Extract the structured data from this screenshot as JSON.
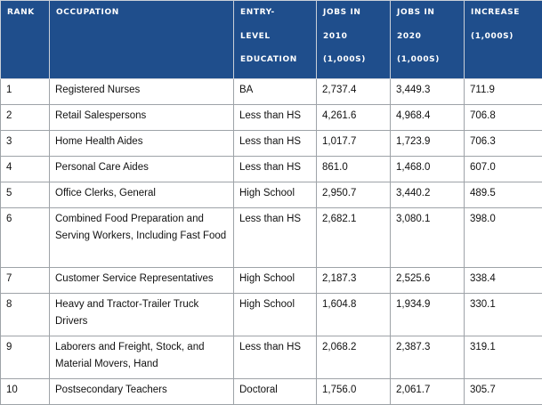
{
  "table": {
    "headers": {
      "rank": "RANK",
      "occupation": "OCCUPATION",
      "education": [
        "ENTRY-",
        "LEVEL",
        "EDUCATION"
      ],
      "jobs2010": [
        "JOBS IN",
        "2010",
        "(1,000S)"
      ],
      "jobs2020": [
        "JOBS IN",
        "2020",
        "(1,000S)"
      ],
      "increase": [
        "INCREASE",
        "(1,000S)"
      ]
    },
    "rows": [
      {
        "rank": "1",
        "occupation": "Registered Nurses",
        "education": "BA",
        "jobs2010": "2,737.4",
        "jobs2020": "3,449.3",
        "increase": "711.9"
      },
      {
        "rank": "2",
        "occupation": "Retail Salespersons",
        "education": "Less than HS",
        "jobs2010": "4,261.6",
        "jobs2020": "4,968.4",
        "increase": "706.8"
      },
      {
        "rank": "3",
        "occupation": "Home Health Aides",
        "education": "Less than HS",
        "jobs2010": "1,017.7",
        "jobs2020": "1,723.9",
        "increase": "706.3"
      },
      {
        "rank": "4",
        "occupation": "Personal Care Aides",
        "education": "Less than HS",
        "jobs2010": "861.0",
        "jobs2020": "1,468.0",
        "increase": "607.0"
      },
      {
        "rank": "5",
        "occupation": "Office Clerks, General",
        "education": "High School",
        "jobs2010": "2,950.7",
        "jobs2020": "3,440.2",
        "increase": "489.5"
      },
      {
        "rank": "6",
        "occupation": "Combined Food Preparation and Serving Workers, Including Fast Food",
        "education": "Less than HS",
        "jobs2010": "2,682.1",
        "jobs2020": "3,080.1",
        "increase": "398.0"
      },
      {
        "rank": "7",
        "occupation": "Customer Service Representatives",
        "education": "High School",
        "jobs2010": "2,187.3",
        "jobs2020": "2,525.6",
        "increase": "338.4"
      },
      {
        "rank": "8",
        "occupation": "Heavy and Tractor-Trailer Truck Drivers",
        "education": "High School",
        "jobs2010": "1,604.8",
        "jobs2020": "1,934.9",
        "increase": "330.1"
      },
      {
        "rank": "9",
        "occupation": "Laborers and Freight, Stock, and Material Movers, Hand",
        "education": "Less than HS",
        "jobs2010": "2,068.2",
        "jobs2020": "2,387.3",
        "increase": "319.1"
      },
      {
        "rank": "10",
        "occupation": "Postsecondary Teachers",
        "education": "Doctoral",
        "jobs2010": "1,756.0",
        "jobs2020": "2,061.7",
        "increase": "305.7"
      }
    ]
  }
}
